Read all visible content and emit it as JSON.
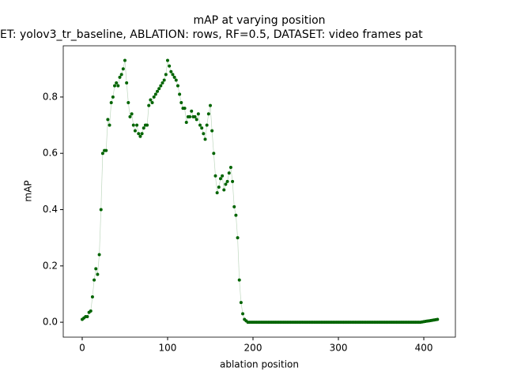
{
  "chart_data": {
    "type": "scatter",
    "title": "mAP at varying position",
    "subtitle": "ET: yolov3_tr_baseline, ABLATION: rows, RF=0.5, DATASET: video frames pat",
    "x_label": "ablation position",
    "y_label": "mAP",
    "color": "#006400",
    "x": [
      0,
      2,
      4,
      6,
      8,
      10,
      12,
      14,
      16,
      18,
      20,
      22,
      24,
      26,
      28,
      30,
      32,
      34,
      36,
      38,
      40,
      42,
      44,
      46,
      48,
      50,
      52,
      54,
      56,
      58,
      60,
      62,
      64,
      66,
      68,
      70,
      72,
      74,
      76,
      78,
      80,
      82,
      84,
      86,
      88,
      90,
      92,
      94,
      96,
      98,
      100,
      102,
      104,
      106,
      108,
      110,
      112,
      114,
      116,
      118,
      120,
      122,
      124,
      126,
      128,
      130,
      132,
      134,
      136,
      138,
      140,
      142,
      144,
      146,
      148,
      150,
      152,
      154,
      156,
      158,
      160,
      162,
      164,
      166,
      168,
      170,
      172,
      174,
      176,
      178,
      180,
      182,
      184,
      186,
      188,
      190,
      192,
      194,
      196,
      198,
      200,
      202,
      204,
      206,
      208,
      210,
      212,
      214,
      216,
      218,
      220,
      222,
      224,
      226,
      228,
      230,
      232,
      234,
      236,
      238,
      240,
      242,
      244,
      246,
      248,
      250,
      252,
      254,
      256,
      258,
      260,
      262,
      264,
      266,
      268,
      270,
      272,
      274,
      276,
      278,
      280,
      282,
      284,
      286,
      288,
      290,
      292,
      294,
      296,
      298,
      300,
      302,
      304,
      306,
      308,
      310,
      312,
      314,
      316,
      318,
      320,
      322,
      324,
      326,
      328,
      330,
      332,
      334,
      336,
      338,
      340,
      342,
      344,
      346,
      348,
      350,
      352,
      354,
      356,
      358,
      360,
      362,
      364,
      366,
      368,
      370,
      372,
      374,
      376,
      378,
      380,
      382,
      384,
      386,
      388,
      390,
      392,
      394,
      396,
      398,
      400,
      402,
      404,
      406,
      408,
      410,
      412,
      414,
      416
    ],
    "values": [
      0.01,
      0.015,
      0.02,
      0.02,
      0.035,
      0.04,
      0.09,
      0.15,
      0.19,
      0.17,
      0.24,
      0.4,
      0.6,
      0.61,
      0.61,
      0.72,
      0.7,
      0.78,
      0.8,
      0.84,
      0.85,
      0.84,
      0.87,
      0.88,
      0.9,
      0.93,
      0.85,
      0.78,
      0.73,
      0.74,
      0.7,
      0.68,
      0.7,
      0.67,
      0.66,
      0.67,
      0.69,
      0.7,
      0.7,
      0.77,
      0.79,
      0.78,
      0.8,
      0.81,
      0.82,
      0.83,
      0.84,
      0.85,
      0.86,
      0.88,
      0.93,
      0.91,
      0.89,
      0.88,
      0.87,
      0.86,
      0.84,
      0.81,
      0.78,
      0.76,
      0.76,
      0.71,
      0.73,
      0.73,
      0.75,
      0.73,
      0.73,
      0.72,
      0.74,
      0.7,
      0.69,
      0.67,
      0.65,
      0.7,
      0.74,
      0.77,
      0.68,
      0.6,
      0.52,
      0.46,
      0.48,
      0.51,
      0.52,
      0.47,
      0.49,
      0.5,
      0.53,
      0.55,
      0.5,
      0.41,
      0.38,
      0.3,
      0.15,
      0.07,
      0.03,
      0.01,
      0.005,
      0,
      0,
      0,
      0,
      0,
      0,
      0,
      0,
      0,
      0,
      0,
      0,
      0,
      0,
      0,
      0,
      0,
      0,
      0,
      0,
      0,
      0,
      0,
      0,
      0,
      0,
      0,
      0,
      0,
      0,
      0,
      0,
      0,
      0,
      0,
      0,
      0,
      0,
      0,
      0,
      0,
      0,
      0,
      0,
      0,
      0,
      0,
      0,
      0,
      0,
      0,
      0,
      0,
      0,
      0,
      0,
      0,
      0,
      0,
      0,
      0,
      0,
      0,
      0,
      0,
      0,
      0,
      0,
      0,
      0,
      0,
      0,
      0,
      0,
      0,
      0,
      0,
      0,
      0,
      0,
      0,
      0,
      0,
      0,
      0,
      0,
      0,
      0,
      0,
      0,
      0,
      0,
      0,
      0,
      0,
      0,
      0,
      0,
      0,
      0,
      0,
      0,
      0.001,
      0.002,
      0.003,
      0.004,
      0.005,
      0.006,
      0.007,
      0.008,
      0.009,
      0.01
    ],
    "xlim": [
      -22.2,
      437
    ],
    "ylim": [
      -0.053,
      0.982
    ],
    "xticks": [
      0,
      100,
      200,
      300,
      400
    ],
    "yticks": [
      {
        "value": 0,
        "label": "0.0"
      },
      0.2,
      0.4,
      0.6,
      0.8
    ]
  }
}
